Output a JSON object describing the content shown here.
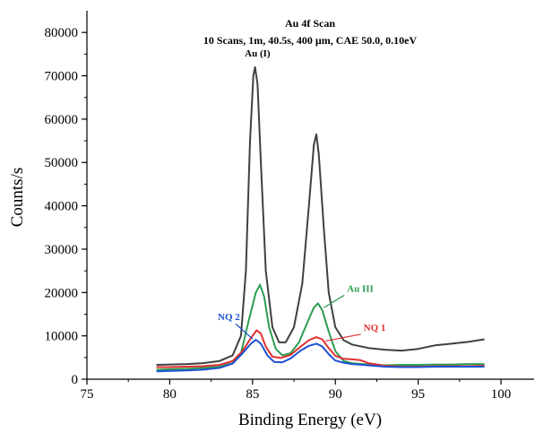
{
  "chart_data": {
    "type": "line",
    "title": "Au 4f Scan",
    "subtitle": "10 Scans, 1m, 40.5s, 400 µm, CAE 50.0, 0.10eV",
    "xlabel": "Binding Energy (eV)",
    "ylabel": "Counts/s",
    "xlim": [
      75,
      102
    ],
    "ylim": [
      0,
      85000
    ],
    "xticks": [
      75,
      80,
      85,
      90,
      95,
      100
    ],
    "yticks": [
      0,
      10000,
      20000,
      30000,
      40000,
      50000,
      60000,
      70000,
      80000
    ],
    "grid": false,
    "legend": "none",
    "series": [
      {
        "color": "#404040",
        "points": [
          [
            79.2,
            3300
          ],
          [
            80,
            3400
          ],
          [
            81,
            3500
          ],
          [
            82,
            3700
          ],
          [
            83,
            4200
          ],
          [
            83.8,
            5500
          ],
          [
            84.3,
            10000
          ],
          [
            84.6,
            25000
          ],
          [
            84.85,
            55000
          ],
          [
            85.05,
            70000
          ],
          [
            85.15,
            72000
          ],
          [
            85.3,
            68000
          ],
          [
            85.5,
            50000
          ],
          [
            85.8,
            25000
          ],
          [
            86.2,
            12000
          ],
          [
            86.6,
            8500
          ],
          [
            87.0,
            8500
          ],
          [
            87.5,
            12000
          ],
          [
            88.0,
            22000
          ],
          [
            88.4,
            40000
          ],
          [
            88.7,
            54000
          ],
          [
            88.85,
            56500
          ],
          [
            89.0,
            52000
          ],
          [
            89.3,
            35000
          ],
          [
            89.6,
            20000
          ],
          [
            90.0,
            12000
          ],
          [
            90.5,
            9000
          ],
          [
            91,
            8000
          ],
          [
            92,
            7200
          ],
          [
            93,
            6800
          ],
          [
            94,
            6600
          ],
          [
            95,
            7000
          ],
          [
            96,
            7800
          ],
          [
            97,
            8200
          ],
          [
            98,
            8600
          ],
          [
            99,
            9200
          ]
        ]
      },
      {
        "color": "#2e9c52",
        "points": [
          [
            79.2,
            2200
          ],
          [
            80,
            2300
          ],
          [
            81,
            2400
          ],
          [
            82,
            2600
          ],
          [
            83,
            2900
          ],
          [
            83.8,
            3700
          ],
          [
            84.3,
            6000
          ],
          [
            84.8,
            14000
          ],
          [
            85.2,
            20000
          ],
          [
            85.45,
            21800
          ],
          [
            85.7,
            19000
          ],
          [
            86.0,
            12000
          ],
          [
            86.4,
            7000
          ],
          [
            86.8,
            5500
          ],
          [
            87.3,
            6000
          ],
          [
            87.8,
            8500
          ],
          [
            88.3,
            13000
          ],
          [
            88.7,
            16500
          ],
          [
            88.95,
            17500
          ],
          [
            89.2,
            16000
          ],
          [
            89.6,
            11000
          ],
          [
            90.0,
            6500
          ],
          [
            90.5,
            4200
          ],
          [
            91,
            3700
          ],
          [
            92,
            3400
          ],
          [
            93,
            3200
          ],
          [
            94,
            3300
          ],
          [
            95,
            3300
          ],
          [
            96,
            3400
          ],
          [
            97,
            3400
          ],
          [
            98,
            3500
          ],
          [
            99,
            3500
          ]
        ]
      },
      {
        "color": "#e03030",
        "points": [
          [
            79.2,
            2800
          ],
          [
            80,
            2800
          ],
          [
            81,
            2900
          ],
          [
            82,
            3000
          ],
          [
            83,
            3300
          ],
          [
            83.8,
            4200
          ],
          [
            84.4,
            6500
          ],
          [
            84.9,
            9500
          ],
          [
            85.25,
            11300
          ],
          [
            85.5,
            10500
          ],
          [
            85.8,
            7500
          ],
          [
            86.2,
            5200
          ],
          [
            86.7,
            4900
          ],
          [
            87.3,
            5600
          ],
          [
            87.9,
            7500
          ],
          [
            88.4,
            9000
          ],
          [
            88.85,
            9700
          ],
          [
            89.2,
            9200
          ],
          [
            89.6,
            7200
          ],
          [
            90.0,
            5400
          ],
          [
            90.5,
            4700
          ],
          [
            91,
            4600
          ],
          [
            91.5,
            4400
          ],
          [
            92,
            3700
          ],
          [
            93,
            3100
          ],
          [
            94,
            2900
          ],
          [
            95,
            2900
          ],
          [
            96,
            3000
          ],
          [
            97,
            3000
          ],
          [
            98,
            3000
          ],
          [
            99,
            3100
          ]
        ]
      },
      {
        "color": "#1e50d2",
        "points": [
          [
            79.2,
            1800
          ],
          [
            80,
            1900
          ],
          [
            81,
            2000
          ],
          [
            82,
            2200
          ],
          [
            83,
            2600
          ],
          [
            83.8,
            3600
          ],
          [
            84.4,
            6000
          ],
          [
            84.9,
            8200
          ],
          [
            85.2,
            9100
          ],
          [
            85.5,
            8200
          ],
          [
            85.9,
            5500
          ],
          [
            86.3,
            4000
          ],
          [
            86.8,
            3900
          ],
          [
            87.3,
            4800
          ],
          [
            87.9,
            6600
          ],
          [
            88.4,
            7700
          ],
          [
            88.85,
            8200
          ],
          [
            89.2,
            7600
          ],
          [
            89.6,
            5800
          ],
          [
            90.0,
            4300
          ],
          [
            90.5,
            3800
          ],
          [
            91,
            3500
          ],
          [
            92,
            3200
          ],
          [
            93,
            2900
          ],
          [
            94,
            2800
          ],
          [
            95,
            2800
          ],
          [
            96,
            2900
          ],
          [
            97,
            2900
          ],
          [
            98,
            2900
          ],
          [
            99,
            2900
          ]
        ]
      }
    ],
    "annotations": [
      {
        "text": "Au (I)",
        "color": "#000000",
        "x": 85.3,
        "y": 74500
      },
      {
        "text": "Au III",
        "color": "#2e9c52",
        "x": 90.7,
        "y": 20200,
        "arrow_to": [
          89.3,
          16500
        ]
      },
      {
        "text": "NQ 1",
        "color": "#e03030",
        "x": 91.7,
        "y": 11200,
        "arrow_to": [
          89.4,
          8800
        ]
      },
      {
        "text": "NQ 2",
        "color": "#1e50d2",
        "x": 82.9,
        "y": 13600,
        "arrow_to": [
          85.0,
          9300
        ]
      }
    ]
  }
}
